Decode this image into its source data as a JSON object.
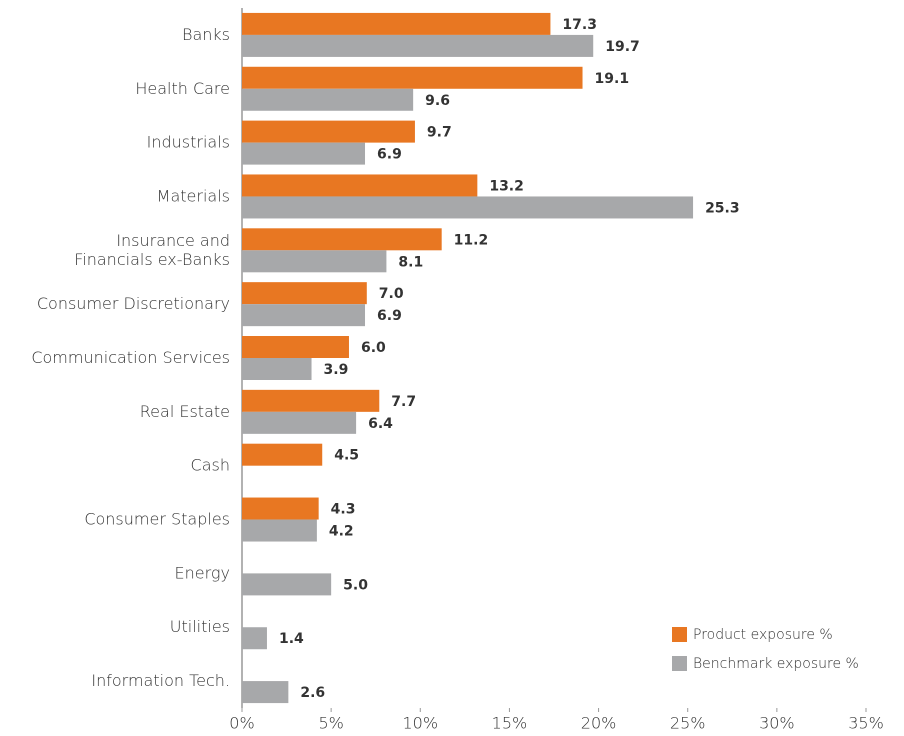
{
  "chart_data": {
    "type": "bar",
    "orientation": "horizontal",
    "categories": [
      "Banks",
      "Health Care",
      "Industrials",
      "Materials",
      "Insurance and\nFinancials ex-Banks",
      "Consumer Discretionary",
      "Communication Services",
      "Real Estate",
      "Cash",
      "Consumer Staples",
      "Energy",
      "Utilities",
      "Information Tech."
    ],
    "series": [
      {
        "name": "Product exposure %",
        "color": "#e87722",
        "values": [
          17.3,
          19.1,
          9.7,
          13.2,
          11.2,
          7.0,
          6.0,
          7.7,
          4.5,
          4.3,
          null,
          null,
          null
        ],
        "value_labels": [
          "17.3",
          "19.1",
          "9.7",
          "13.2",
          "11.2",
          "7.0",
          "6.0",
          "7.7",
          "4.5",
          "4.3",
          null,
          null,
          null
        ]
      },
      {
        "name": "Benchmark exposure %",
        "color": "#a7a8aa",
        "values": [
          19.7,
          9.6,
          6.9,
          25.3,
          8.1,
          6.9,
          3.9,
          6.4,
          null,
          4.2,
          5.0,
          1.4,
          2.6
        ],
        "value_labels": [
          "19.7",
          "9.6",
          "6.9",
          "25.3",
          "8.1",
          "6.9",
          "3.9",
          "6.4",
          null,
          "4.2",
          "5.0",
          "1.4",
          "2.6"
        ]
      }
    ],
    "xlim": [
      0,
      35
    ],
    "xticks": [
      {
        "value": 0,
        "label": "0%"
      },
      {
        "value": 5,
        "label": "5%"
      },
      {
        "value": 10,
        "label": "10%"
      },
      {
        "value": 15,
        "label": "15%"
      },
      {
        "value": 20,
        "label": "20%"
      },
      {
        "value": 25,
        "label": "25%"
      },
      {
        "value": 30,
        "label": "30%"
      },
      {
        "value": 35,
        "label": "35%"
      }
    ],
    "legend": "lower right",
    "grid": false
  }
}
